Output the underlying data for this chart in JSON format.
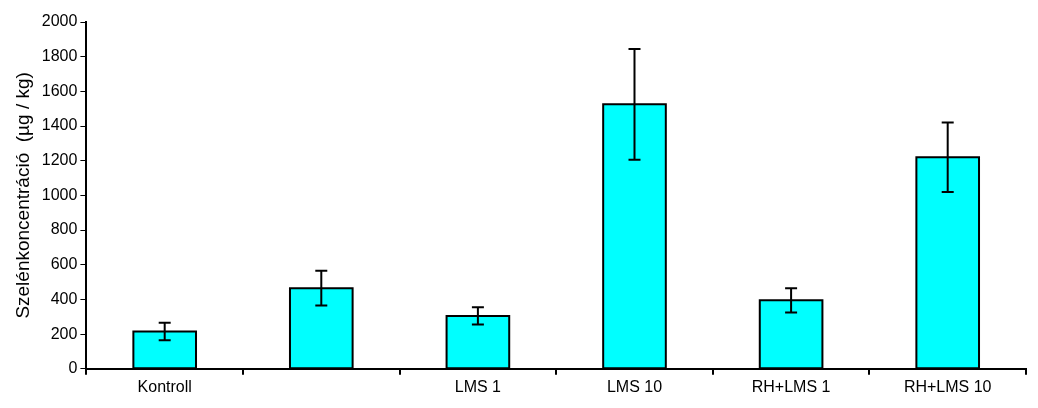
{
  "chart_data": {
    "type": "bar",
    "ylabel": "Szelénkoncentráció  (µg / kg)",
    "categories": [
      "Kontroll",
      null,
      "LMS 1",
      "LMS 10",
      "RH+LMS 1",
      "RH+LMS 10"
    ],
    "values": [
      215,
      465,
      305,
      1525,
      395,
      1220
    ],
    "errors": [
      50,
      100,
      50,
      320,
      70,
      200
    ],
    "color": "#00ffff",
    "ylim": [
      0,
      2000
    ],
    "yticks": [
      0,
      200,
      400,
      600,
      800,
      1000,
      1200,
      1400,
      1600,
      1800,
      2000
    ],
    "grid": false,
    "legend": false
  }
}
